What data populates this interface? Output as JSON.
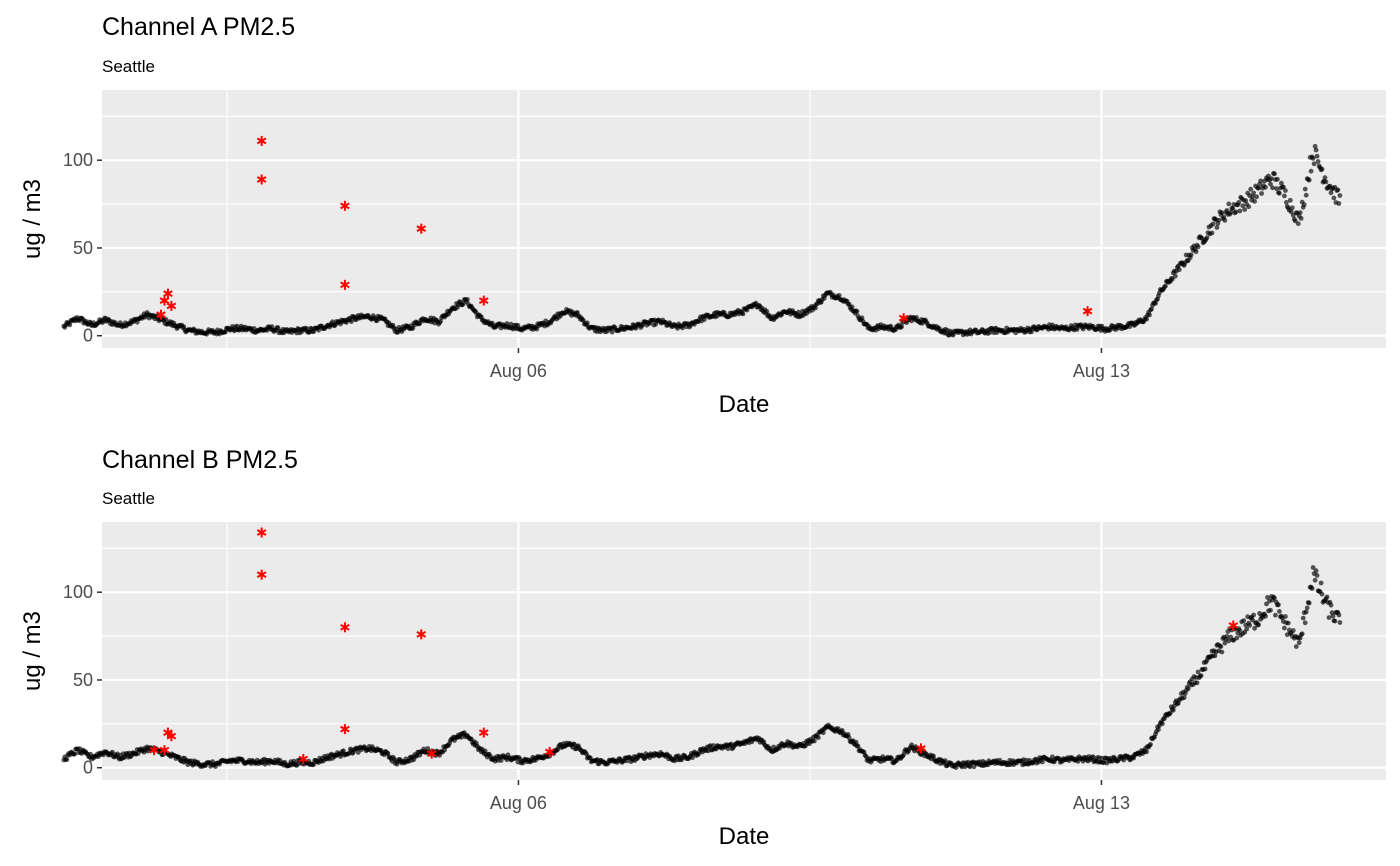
{
  "chart_data": [
    {
      "type": "scatter",
      "title": "Channel A PM2.5",
      "subtitle": "Seattle",
      "xlabel": "Date",
      "ylabel": "ug / m3",
      "xlim": [
        "2018-08-01T00:00",
        "2018-08-16T10:00"
      ],
      "ylim": [
        -7,
        140
      ],
      "x_ticks": [
        {
          "value": "2018-08-06T00:00",
          "label": "Aug 06"
        },
        {
          "value": "2018-08-13T00:00",
          "label": "Aug 13"
        }
      ],
      "y_ticks": [
        0,
        50,
        100
      ],
      "grid": true,
      "colors": {
        "normal": "#000000",
        "outlier": "#ff0000",
        "panel": "#ebebeb"
      },
      "series": [
        {
          "role": "measurements",
          "points": [
            [
              "2018-07-31T13:00",
              5
            ],
            [
              "2018-07-31T17:00",
              10
            ],
            [
              "2018-07-31T21:00",
              6
            ],
            [
              "2018-08-01T01:00",
              9
            ],
            [
              "2018-08-01T05:00",
              6
            ],
            [
              "2018-08-01T09:00",
              8
            ],
            [
              "2018-08-01T13:00",
              12
            ],
            [
              "2018-08-01T17:00",
              9
            ],
            [
              "2018-08-01T21:00",
              6
            ],
            [
              "2018-08-02T01:00",
              3
            ],
            [
              "2018-08-02T05:00",
              2
            ],
            [
              "2018-08-02T09:00",
              2
            ],
            [
              "2018-08-02T13:00",
              4
            ],
            [
              "2018-08-02T17:00",
              4
            ],
            [
              "2018-08-02T21:00",
              3
            ],
            [
              "2018-08-03T01:00",
              4
            ],
            [
              "2018-08-03T05:00",
              2
            ],
            [
              "2018-08-03T09:00",
              3
            ],
            [
              "2018-08-03T13:00",
              3
            ],
            [
              "2018-08-03T17:00",
              6
            ],
            [
              "2018-08-03T21:00",
              8
            ],
            [
              "2018-08-04T01:00",
              10
            ],
            [
              "2018-08-04T05:00",
              11
            ],
            [
              "2018-08-04T09:00",
              9
            ],
            [
              "2018-08-04T13:00",
              3
            ],
            [
              "2018-08-04T17:00",
              5
            ],
            [
              "2018-08-04T21:00",
              10
            ],
            [
              "2018-08-05T01:00",
              8
            ],
            [
              "2018-08-05T05:00",
              16
            ],
            [
              "2018-08-05T09:00",
              20
            ],
            [
              "2018-08-05T13:00",
              10
            ],
            [
              "2018-08-05T17:00",
              5
            ],
            [
              "2018-08-05T21:00",
              6
            ],
            [
              "2018-08-06T01:00",
              4
            ],
            [
              "2018-08-06T05:00",
              5
            ],
            [
              "2018-08-06T09:00",
              8
            ],
            [
              "2018-08-06T13:00",
              14
            ],
            [
              "2018-08-06T17:00",
              12
            ],
            [
              "2018-08-06T21:00",
              4
            ],
            [
              "2018-08-07T01:00",
              3
            ],
            [
              "2018-08-07T05:00",
              4
            ],
            [
              "2018-08-07T09:00",
              5
            ],
            [
              "2018-08-07T13:00",
              7
            ],
            [
              "2018-08-07T17:00",
              8
            ],
            [
              "2018-08-07T21:00",
              5
            ],
            [
              "2018-08-08T01:00",
              6
            ],
            [
              "2018-08-08T05:00",
              10
            ],
            [
              "2018-08-08T09:00",
              12
            ],
            [
              "2018-08-08T13:00",
              12
            ],
            [
              "2018-08-08T17:00",
              14
            ],
            [
              "2018-08-08T21:00",
              18
            ],
            [
              "2018-08-09T01:00",
              10
            ],
            [
              "2018-08-09T05:00",
              14
            ],
            [
              "2018-08-09T09:00",
              12
            ],
            [
              "2018-08-09T13:00",
              16
            ],
            [
              "2018-08-09T17:00",
              24
            ],
            [
              "2018-08-09T21:00",
              22
            ],
            [
              "2018-08-10T01:00",
              14
            ],
            [
              "2018-08-10T05:00",
              4
            ],
            [
              "2018-08-10T09:00",
              5
            ],
            [
              "2018-08-10T13:00",
              4
            ],
            [
              "2018-08-10T17:00",
              10
            ],
            [
              "2018-08-10T21:00",
              8
            ],
            [
              "2018-08-11T01:00",
              4
            ],
            [
              "2018-08-11T05:00",
              1
            ],
            [
              "2018-08-11T09:00",
              2
            ],
            [
              "2018-08-11T13:00",
              2
            ],
            [
              "2018-08-11T17:00",
              3
            ],
            [
              "2018-08-11T21:00",
              3
            ],
            [
              "2018-08-12T01:00",
              3
            ],
            [
              "2018-08-12T05:00",
              4
            ],
            [
              "2018-08-12T09:00",
              5
            ],
            [
              "2018-08-12T13:00",
              4
            ],
            [
              "2018-08-12T17:00",
              5
            ],
            [
              "2018-08-12T21:00",
              5
            ],
            [
              "2018-08-13T01:00",
              4
            ],
            [
              "2018-08-13T05:00",
              5
            ],
            [
              "2018-08-13T09:00",
              6
            ],
            [
              "2018-08-13T13:00",
              10
            ],
            [
              "2018-08-13T17:00",
              25
            ],
            [
              "2018-08-13T21:00",
              35
            ],
            [
              "2018-08-14T01:00",
              45
            ],
            [
              "2018-08-14T05:00",
              55
            ],
            [
              "2018-08-14T09:00",
              65
            ],
            [
              "2018-08-14T13:00",
              72
            ],
            [
              "2018-08-14T17:00",
              76
            ],
            [
              "2018-08-14T21:00",
              82
            ],
            [
              "2018-08-15T01:00",
              90
            ],
            [
              "2018-08-15T05:00",
              80
            ],
            [
              "2018-08-15T09:00",
              65
            ],
            [
              "2018-08-15T13:00",
              105
            ],
            [
              "2018-08-15T17:00",
              88
            ],
            [
              "2018-08-15T21:00",
              76
            ]
          ]
        },
        {
          "role": "outliers",
          "points": [
            [
              "2018-08-01T17:00",
              12
            ],
            [
              "2018-08-01T18:00",
              20
            ],
            [
              "2018-08-01T19:00",
              24
            ],
            [
              "2018-08-01T20:00",
              17
            ],
            [
              "2018-08-02T22:00",
              111
            ],
            [
              "2018-08-02T22:00",
              89
            ],
            [
              "2018-08-03T22:00",
              74
            ],
            [
              "2018-08-03T22:00",
              29
            ],
            [
              "2018-08-04T20:00",
              61
            ],
            [
              "2018-08-05T14:00",
              20
            ],
            [
              "2018-08-10T15:00",
              10
            ],
            [
              "2018-08-12T20:00",
              14
            ]
          ]
        }
      ]
    },
    {
      "type": "scatter",
      "title": "Channel B PM2.5",
      "subtitle": "Seattle",
      "xlabel": "Date",
      "ylabel": "ug / m3",
      "xlim": [
        "2018-08-01T00:00",
        "2018-08-16T10:00"
      ],
      "ylim": [
        -7,
        140
      ],
      "x_ticks": [
        {
          "value": "2018-08-06T00:00",
          "label": "Aug 06"
        },
        {
          "value": "2018-08-13T00:00",
          "label": "Aug 13"
        }
      ],
      "y_ticks": [
        0,
        50,
        100
      ],
      "grid": true,
      "colors": {
        "normal": "#000000",
        "outlier": "#ff0000",
        "panel": "#ebebeb"
      },
      "series": [
        {
          "role": "measurements",
          "points": [
            [
              "2018-07-31T13:00",
              5
            ],
            [
              "2018-07-31T17:00",
              10
            ],
            [
              "2018-07-31T21:00",
              6
            ],
            [
              "2018-08-01T01:00",
              9
            ],
            [
              "2018-08-01T05:00",
              6
            ],
            [
              "2018-08-01T09:00",
              8
            ],
            [
              "2018-08-01T13:00",
              11
            ],
            [
              "2018-08-01T17:00",
              9
            ],
            [
              "2018-08-01T21:00",
              6
            ],
            [
              "2018-08-02T01:00",
              3
            ],
            [
              "2018-08-02T05:00",
              2
            ],
            [
              "2018-08-02T09:00",
              2
            ],
            [
              "2018-08-02T13:00",
              4
            ],
            [
              "2018-08-02T17:00",
              4
            ],
            [
              "2018-08-02T21:00",
              3
            ],
            [
              "2018-08-03T01:00",
              4
            ],
            [
              "2018-08-03T05:00",
              2
            ],
            [
              "2018-08-03T09:00",
              3
            ],
            [
              "2018-08-03T13:00",
              3
            ],
            [
              "2018-08-03T17:00",
              6
            ],
            [
              "2018-08-03T21:00",
              8
            ],
            [
              "2018-08-04T01:00",
              10
            ],
            [
              "2018-08-04T05:00",
              11
            ],
            [
              "2018-08-04T09:00",
              9
            ],
            [
              "2018-08-04T13:00",
              3
            ],
            [
              "2018-08-04T17:00",
              5
            ],
            [
              "2018-08-04T21:00",
              10
            ],
            [
              "2018-08-05T01:00",
              8
            ],
            [
              "2018-08-05T05:00",
              16
            ],
            [
              "2018-08-05T09:00",
              19
            ],
            [
              "2018-08-05T13:00",
              10
            ],
            [
              "2018-08-05T17:00",
              5
            ],
            [
              "2018-08-05T21:00",
              6
            ],
            [
              "2018-08-06T01:00",
              4
            ],
            [
              "2018-08-06T05:00",
              5
            ],
            [
              "2018-08-06T09:00",
              8
            ],
            [
              "2018-08-06T13:00",
              13
            ],
            [
              "2018-08-06T17:00",
              12
            ],
            [
              "2018-08-06T21:00",
              4
            ],
            [
              "2018-08-07T01:00",
              3
            ],
            [
              "2018-08-07T05:00",
              4
            ],
            [
              "2018-08-07T09:00",
              5
            ],
            [
              "2018-08-07T13:00",
              7
            ],
            [
              "2018-08-07T17:00",
              8
            ],
            [
              "2018-08-07T21:00",
              5
            ],
            [
              "2018-08-08T01:00",
              6
            ],
            [
              "2018-08-08T05:00",
              10
            ],
            [
              "2018-08-08T09:00",
              12
            ],
            [
              "2018-08-08T13:00",
              12
            ],
            [
              "2018-08-08T17:00",
              14
            ],
            [
              "2018-08-08T21:00",
              17
            ],
            [
              "2018-08-09T01:00",
              10
            ],
            [
              "2018-08-09T05:00",
              14
            ],
            [
              "2018-08-09T09:00",
              12
            ],
            [
              "2018-08-09T13:00",
              16
            ],
            [
              "2018-08-09T17:00",
              23
            ],
            [
              "2018-08-09T21:00",
              21
            ],
            [
              "2018-08-10T01:00",
              14
            ],
            [
              "2018-08-10T05:00",
              4
            ],
            [
              "2018-08-10T09:00",
              5
            ],
            [
              "2018-08-10T13:00",
              4
            ],
            [
              "2018-08-10T17:00",
              12
            ],
            [
              "2018-08-10T21:00",
              8
            ],
            [
              "2018-08-11T01:00",
              4
            ],
            [
              "2018-08-11T05:00",
              1
            ],
            [
              "2018-08-11T09:00",
              2
            ],
            [
              "2018-08-11T13:00",
              2
            ],
            [
              "2018-08-11T17:00",
              3
            ],
            [
              "2018-08-11T21:00",
              3
            ],
            [
              "2018-08-12T01:00",
              3
            ],
            [
              "2018-08-12T05:00",
              4
            ],
            [
              "2018-08-12T09:00",
              5
            ],
            [
              "2018-08-12T13:00",
              4
            ],
            [
              "2018-08-12T17:00",
              5
            ],
            [
              "2018-08-12T21:00",
              5
            ],
            [
              "2018-08-13T01:00",
              4
            ],
            [
              "2018-08-13T05:00",
              5
            ],
            [
              "2018-08-13T09:00",
              6
            ],
            [
              "2018-08-13T13:00",
              10
            ],
            [
              "2018-08-13T17:00",
              25
            ],
            [
              "2018-08-13T21:00",
              35
            ],
            [
              "2018-08-14T01:00",
              45
            ],
            [
              "2018-08-14T05:00",
              55
            ],
            [
              "2018-08-14T09:00",
              66
            ],
            [
              "2018-08-14T13:00",
              75
            ],
            [
              "2018-08-14T17:00",
              80
            ],
            [
              "2018-08-14T21:00",
              85
            ],
            [
              "2018-08-15T01:00",
              95
            ],
            [
              "2018-08-15T05:00",
              82
            ],
            [
              "2018-08-15T09:00",
              70
            ],
            [
              "2018-08-15T13:00",
              110
            ],
            [
              "2018-08-15T17:00",
              92
            ],
            [
              "2018-08-15T21:00",
              82
            ]
          ]
        },
        {
          "role": "outliers",
          "points": [
            [
              "2018-08-01T15:00",
              10
            ],
            [
              "2018-08-01T18:00",
              10
            ],
            [
              "2018-08-01T19:00",
              20
            ],
            [
              "2018-08-01T20:00",
              18
            ],
            [
              "2018-08-02T22:00",
              134
            ],
            [
              "2018-08-02T22:00",
              110
            ],
            [
              "2018-08-03T10:00",
              5
            ],
            [
              "2018-08-03T22:00",
              80
            ],
            [
              "2018-08-03T22:00",
              22
            ],
            [
              "2018-08-04T20:00",
              76
            ],
            [
              "2018-08-04T23:00",
              8
            ],
            [
              "2018-08-05T14:00",
              20
            ],
            [
              "2018-08-06T09:00",
              9
            ],
            [
              "2018-08-10T20:00",
              11
            ],
            [
              "2018-08-14T14:00",
              81
            ]
          ]
        }
      ]
    }
  ]
}
